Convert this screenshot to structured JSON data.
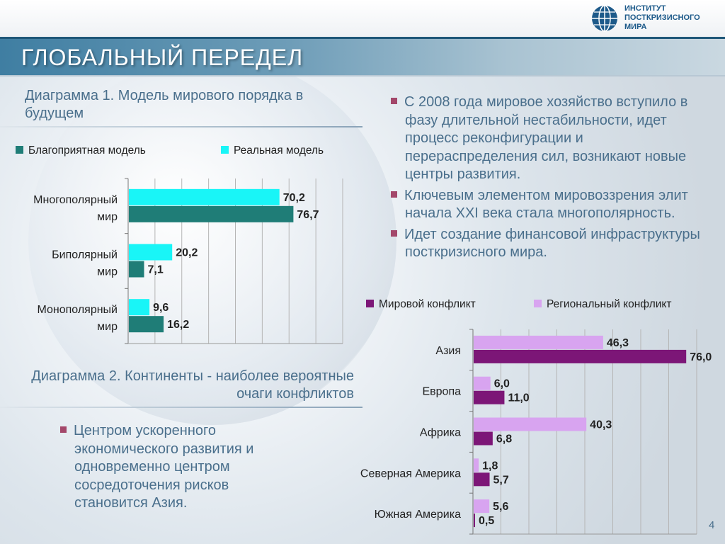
{
  "header": {
    "title": "ГЛОБАЛЬНЫЙ ПЕРЕДЕЛ",
    "logo_lines": [
      "ИНСТИТУТ",
      "ПОСТКРИЗИСНОГО",
      "МИРА"
    ]
  },
  "captions": {
    "chart1": "Диаграмма 1. Модель мирового порядка в будущем",
    "chart2": "Диаграмма 2. Континенты - наиболее вероятные очаги конфликтов"
  },
  "bullets_right": [
    "С 2008 года мировое хозяйство вступило в фазу длительной нестабильности, идет процесс реконфигурации и перераспределения сил, возникают новые центры развития.",
    "Ключевым элементом мировоззрения элит начала XXI века стала многополярность.",
    "Идет создание финансовой инфраструктуры  посткризисного мира."
  ],
  "bullets_left": [
    "Центром ускоренного экономического развития и одновременно центром сосредоточения рисков становится Азия."
  ],
  "page_number": "4",
  "colors": {
    "bullet": "#a3476a",
    "chart1_favorable": "#1f7d77",
    "chart1_real": "#19f5f7",
    "chart2_world": "#7c1677",
    "chart2_regional": "#d8a4f0"
  },
  "chart_data": [
    {
      "type": "bar",
      "orientation": "horizontal",
      "categories": [
        [
          "Многополярный",
          "мир"
        ],
        [
          "Биполярный",
          "мир"
        ],
        [
          "Монополярный",
          "мир"
        ]
      ],
      "series": [
        {
          "name": "Реальная модель",
          "values": [
            70.2,
            20.2,
            9.6
          ],
          "labels": [
            "70,2",
            "20,2",
            "9,6"
          ]
        },
        {
          "name": "Благоприятная модель",
          "values": [
            76.7,
            7.1,
            16.2
          ],
          "labels": [
            "76,7",
            "7,1",
            "16,2"
          ]
        }
      ],
      "legend": [
        "Благоприятная модель",
        "Реальная модель"
      ],
      "legend_position": "top",
      "xlim": [
        0,
        100
      ],
      "grid": true
    },
    {
      "type": "bar",
      "orientation": "horizontal",
      "categories": [
        [
          "Азия"
        ],
        [
          "Европа"
        ],
        [
          "Африка"
        ],
        [
          "Северная Америка"
        ],
        [
          "Южная Америка"
        ]
      ],
      "series": [
        {
          "name": "Региональный конфликт",
          "values": [
            46.3,
            6.0,
            40.3,
            1.8,
            5.6
          ],
          "labels": [
            "46,3",
            "6,0",
            "40,3",
            "1,8",
            "5,6"
          ]
        },
        {
          "name": "Мировой конфликт",
          "values": [
            76.0,
            11.0,
            6.8,
            5.7,
            0.5
          ],
          "labels": [
            "76,0",
            "11,0",
            "6,8",
            "5,7",
            "0,5"
          ]
        }
      ],
      "legend": [
        "Мировой конфликт",
        "Региональный конфликт"
      ],
      "legend_position": "top",
      "xlim": [
        0,
        80
      ],
      "grid": true
    }
  ]
}
